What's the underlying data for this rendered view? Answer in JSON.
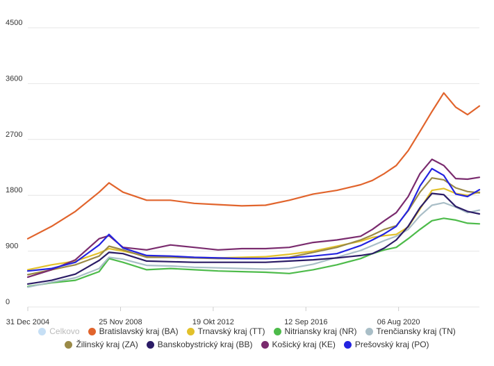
{
  "chart_data": {
    "type": "line",
    "title": "",
    "xlabel": "",
    "ylabel": "",
    "ylim": [
      0,
      4500
    ],
    "y_ticks": [
      0,
      900,
      1800,
      2700,
      3600,
      4500
    ],
    "x_tick_labels": [
      "31 Dec 2004",
      "25 Nov 2008",
      "19 Okt 2012",
      "12 Sep 2016",
      "06 Aug 2020"
    ],
    "x_range": [
      "2004-12-31",
      "2023-12-31"
    ],
    "x_ticks": [
      "2004-12-31",
      "2008-11-25",
      "2012-10-19",
      "2016-09-12",
      "2020-08-06"
    ],
    "grid": "horizontal",
    "legend_placement": "bottom",
    "x": [
      "2004-12-31",
      "2006-01-01",
      "2007-01-01",
      "2008-01-01",
      "2008-06-01",
      "2009-01-01",
      "2010-01-01",
      "2011-01-01",
      "2012-01-01",
      "2013-01-01",
      "2014-01-01",
      "2015-01-01",
      "2016-01-01",
      "2017-01-01",
      "2018-01-01",
      "2019-01-01",
      "2019-07-01",
      "2020-01-01",
      "2020-07-01",
      "2021-01-01",
      "2021-07-01",
      "2022-01-01",
      "2022-07-01",
      "2023-01-01",
      "2023-07-01",
      "2023-12-31"
    ],
    "series": [
      {
        "name": "Celkovo",
        "color": "#c6dff5",
        "hidden": true,
        "values": [
          380,
          470,
          560,
          720,
          880,
          820,
          720,
          680,
          660,
          650,
          630,
          620,
          630,
          700,
          810,
          930,
          1000,
          1080,
          1150,
          1280,
          1480,
          1640,
          1680,
          1620,
          1560,
          1560
        ]
      },
      {
        "name": "Bratislavský kraj (BA)",
        "color": "#e1642c",
        "values": [
          1100,
          1300,
          1540,
          1850,
          2000,
          1850,
          1720,
          1720,
          1670,
          1650,
          1630,
          1640,
          1720,
          1820,
          1880,
          1970,
          2040,
          2150,
          2280,
          2520,
          2830,
          3150,
          3450,
          3220,
          3100,
          3240
        ]
      },
      {
        "name": "Trnavský kraj (TT)",
        "color": "#e2c12b",
        "values": [
          600,
          680,
          740,
          870,
          940,
          900,
          820,
          810,
          800,
          790,
          800,
          810,
          850,
          900,
          980,
          1060,
          1120,
          1150,
          1170,
          1290,
          1580,
          1880,
          1910,
          1830,
          1800,
          1850
        ]
      },
      {
        "name": "Nitriansky kraj (NR)",
        "color": "#4dbb4a",
        "values": [
          330,
          390,
          430,
          570,
          780,
          720,
          600,
          620,
          600,
          580,
          570,
          560,
          540,
          600,
          680,
          780,
          860,
          920,
          960,
          1100,
          1250,
          1390,
          1430,
          1400,
          1350,
          1340
        ]
      },
      {
        "name": "Trenčiansky kraj (TN)",
        "color": "#a9bec7",
        "values": [
          320,
          400,
          470,
          620,
          800,
          770,
          670,
          660,
          640,
          630,
          620,
          610,
          620,
          690,
          800,
          910,
          990,
          1070,
          1140,
          1250,
          1470,
          1640,
          1680,
          1610,
          1520,
          1560
        ]
      },
      {
        "name": "Žilinský kraj (ZA)",
        "color": "#9a8a47",
        "values": [
          520,
          600,
          680,
          820,
          980,
          920,
          800,
          800,
          790,
          780,
          780,
          780,
          800,
          880,
          960,
          1080,
          1160,
          1250,
          1310,
          1550,
          1850,
          2080,
          2050,
          1920,
          1860,
          1840
        ]
      },
      {
        "name": "Banskobystrický kraj (BB)",
        "color": "#2b1c66",
        "values": [
          370,
          430,
          530,
          750,
          880,
          860,
          740,
          730,
          720,
          720,
          720,
          720,
          740,
          760,
          790,
          830,
          860,
          950,
          1080,
          1300,
          1600,
          1830,
          1810,
          1620,
          1540,
          1500
        ]
      },
      {
        "name": "Košický kraj (KE)",
        "color": "#7a2b6e",
        "values": [
          480,
          600,
          760,
          1100,
          1150,
          960,
          920,
          1000,
          960,
          920,
          940,
          940,
          960,
          1040,
          1080,
          1140,
          1250,
          1390,
          1520,
          1780,
          2150,
          2380,
          2280,
          2070,
          2060,
          2090
        ]
      },
      {
        "name": "Prešovský kraj (PO)",
        "color": "#2323e0",
        "values": [
          580,
          620,
          720,
          1000,
          1170,
          950,
          830,
          820,
          800,
          790,
          780,
          780,
          790,
          820,
          860,
          990,
          1080,
          1180,
          1300,
          1560,
          1950,
          2230,
          2120,
          1820,
          1780,
          1890
        ]
      }
    ]
  }
}
